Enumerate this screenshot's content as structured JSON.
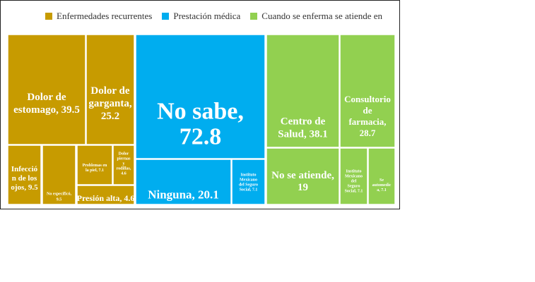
{
  "chart_data": {
    "type": "treemap",
    "colors": {
      "Enfermedades recurrentes": "#c79b00",
      "Prestación médica": "#00adef",
      "Cuando se enferma se atiende en": "#92d050"
    },
    "legend": [
      "Enfermedades recurrentes",
      "Prestación médica",
      "Cuando se enferma se atiende en"
    ],
    "groups": [
      {
        "name": "Enfermedades recurrentes",
        "items": [
          {
            "label": "Dolor de estomago, 39.5",
            "value": 39.5
          },
          {
            "label": "Dolor de garganta, 25.2",
            "value": 25.2
          },
          {
            "label": "Infección de los ojos, 9.5",
            "value": 9.5
          },
          {
            "label": "No específicó, 9.5",
            "value": 9.5
          },
          {
            "label": "Problemas en la piel, 7.1",
            "value": 7.1
          },
          {
            "label": "Dolor piernas y rodillas, 4.6",
            "value": 4.6
          },
          {
            "label": "Presión alta, 4.6",
            "value": 4.6
          }
        ]
      },
      {
        "name": "Prestación médica",
        "items": [
          {
            "label": "No sabe, 72.8",
            "value": 72.8
          },
          {
            "label": "Ninguna, 20.1",
            "value": 20.1
          },
          {
            "label": "Instituto Mexicano del Seguro Social, 7.1",
            "value": 7.1
          }
        ]
      },
      {
        "name": "Cuando se enferma se atiende en",
        "items": [
          {
            "label": "Centro de Salud, 38.1",
            "value": 38.1
          },
          {
            "label": "Consultorio de farmacia, 28.7",
            "value": 28.7
          },
          {
            "label": "No se atiende, 19",
            "value": 19
          },
          {
            "label": "Instituto Mexicano del Seguro Social, 7.1",
            "value": 7.1
          },
          {
            "label": "Se automedica, 7.1",
            "value": 7.1
          }
        ]
      }
    ]
  }
}
